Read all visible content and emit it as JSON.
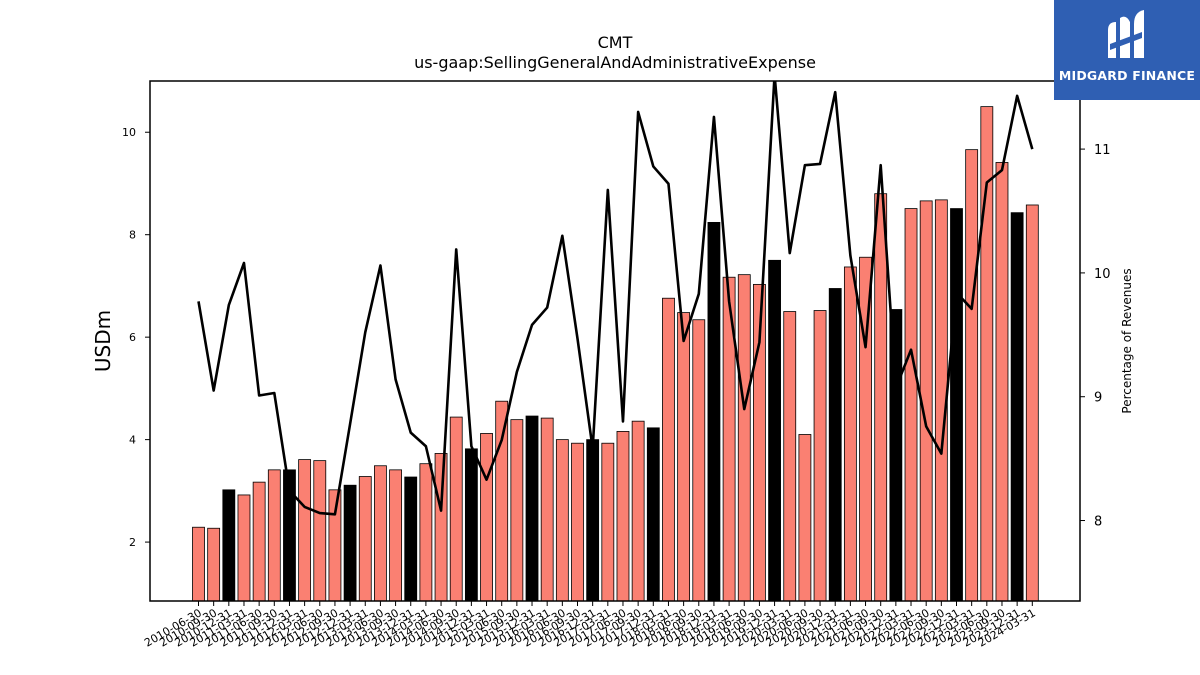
{
  "brand": {
    "name": "MIDGARD FINANCE",
    "bg_color": "#2f5fb3"
  },
  "chart_data": {
    "type": "bar",
    "title": "CMT",
    "subtitle": "us-gaap:SellingGeneralAndAdministrativeExpense",
    "ylabel": "USDm",
    "y2label": "Percentage of Revenues",
    "ylim": [
      0.85,
      11.0
    ],
    "y2lim": [
      7.35,
      11.55
    ],
    "yticks": [
      2,
      4,
      6,
      8,
      10
    ],
    "y2ticks": [
      8,
      9,
      10,
      11
    ],
    "bar_color": "#fa8072",
    "highlight_color": "#000000",
    "line_color": "#000000",
    "categories": [
      "2010-06-30",
      "2010-09-30",
      "2010-12-31",
      "2011-03-31",
      "2011-06-30",
      "2011-09-30",
      "2011-12-31",
      "2012-03-31",
      "2012-06-30",
      "2012-09-30",
      "2012-12-31",
      "2013-03-31",
      "2013-06-30",
      "2013-09-30",
      "2013-12-31",
      "2014-03-31",
      "2014-06-30",
      "2014-09-30",
      "2014-12-31",
      "2015-03-31",
      "2015-06-30",
      "2015-09-30",
      "2015-12-31",
      "2016-03-31",
      "2016-06-30",
      "2016-09-30",
      "2016-12-31",
      "2017-03-31",
      "2017-06-30",
      "2017-09-30",
      "2017-12-31",
      "2018-03-31",
      "2018-06-30",
      "2018-09-30",
      "2018-12-31",
      "2019-03-31",
      "2019-06-30",
      "2019-09-30",
      "2019-12-31",
      "2020-03-31",
      "2020-06-30",
      "2020-09-30",
      "2020-12-31",
      "2021-03-31",
      "2021-06-30",
      "2021-09-30",
      "2021-12-31",
      "2022-03-31",
      "2022-06-30",
      "2022-09-30",
      "2022-12-31",
      "2023-03-31",
      "2023-06-30",
      "2023-09-30",
      "2023-12-31",
      "2024-03-31"
    ],
    "tick_labels": [
      "2010-06-30",
      "2010-09-30",
      "2010-12-31",
      "2011-03-31",
      "2011-06-30",
      "2011-09-30",
      "2011-12-31",
      "2012-03-31",
      "2012-06-30",
      "2012-09-30",
      "2012-12-31",
      "2013-03-31",
      "2013-06-30",
      "2013-09-30",
      "2013-12-31",
      "2014-03-31",
      "2014-06-30",
      "2014-09-30",
      "2014-12-31",
      "2015-03-31",
      "2015-06-30",
      "2015-09-30",
      "2015-12-31",
      "2016-03-31",
      "2016-06-30",
      "2016-09-30",
      "2016-12-31",
      "2017-03-31",
      "2017-06-30",
      "2017-09-30",
      "2017-12-31",
      "2018-03-31",
      "2018-06-30",
      "2018-09-30",
      "2018-12-31",
      "2019-03-31",
      "2019-06-30",
      "2019-09-30",
      "2019-12-31",
      "2020-03-31",
      "2020-06-30",
      "2020-09-30",
      "2020-12-31",
      "2021-03-31",
      "2021-06-30",
      "2021-09-30",
      "2021-12-31",
      "2022-03-31",
      "2022-06-30",
      "2022-09-30",
      "2022-12-31",
      "2023-03-31",
      "2023-06-30",
      "2023-09-30",
      "2023-12-31",
      "2024-03-31"
    ],
    "series": [
      {
        "type": "bar",
        "axis": "left",
        "values": [
          2.29,
          2.27,
          3.02,
          2.92,
          3.17,
          3.41,
          3.41,
          3.61,
          3.59,
          3.02,
          3.11,
          3.28,
          3.49,
          3.41,
          3.27,
          3.53,
          3.73,
          4.44,
          3.82,
          4.12,
          4.75,
          4.39,
          4.46,
          4.42,
          4.0,
          3.93,
          4.0,
          3.93,
          4.16,
          4.36,
          4.23,
          6.76,
          6.48,
          6.34,
          8.24,
          7.17,
          7.22,
          7.03,
          7.5,
          6.5,
          4.1,
          6.52,
          6.95,
          7.37,
          7.56,
          8.8,
          6.54,
          8.51,
          8.66,
          8.68,
          8.51,
          9.66,
          10.5,
          9.41,
          8.43,
          8.58
        ],
        "highlight": [
          false,
          false,
          true,
          false,
          false,
          false,
          true,
          false,
          false,
          false,
          true,
          false,
          false,
          false,
          true,
          false,
          false,
          false,
          true,
          false,
          false,
          false,
          true,
          false,
          false,
          false,
          true,
          false,
          false,
          false,
          true,
          false,
          false,
          false,
          true,
          false,
          false,
          false,
          true,
          false,
          false,
          false,
          true,
          false,
          false,
          false,
          true,
          false,
          false,
          false,
          true,
          false,
          false,
          false,
          true,
          false
        ]
      },
      {
        "type": "line",
        "axis": "right",
        "values": [
          9.77,
          9.05,
          9.74,
          10.08,
          9.01,
          9.03,
          8.24,
          8.11,
          8.06,
          8.05,
          8.78,
          9.52,
          10.06,
          9.14,
          8.71,
          8.6,
          8.08,
          10.19,
          8.6,
          8.33,
          8.65,
          9.2,
          9.58,
          9.72,
          10.3,
          9.47,
          8.58,
          10.67,
          8.8,
          11.3,
          10.86,
          10.72,
          9.45,
          9.83,
          11.26,
          9.77,
          8.9,
          9.44,
          11.6,
          10.16,
          10.87,
          10.88,
          11.46,
          10.14,
          9.4,
          10.87,
          9.07,
          9.38,
          8.76,
          8.54,
          9.84,
          9.71,
          10.73,
          10.83,
          11.43,
          11.0
        ]
      }
    ],
    "grid": false
  }
}
